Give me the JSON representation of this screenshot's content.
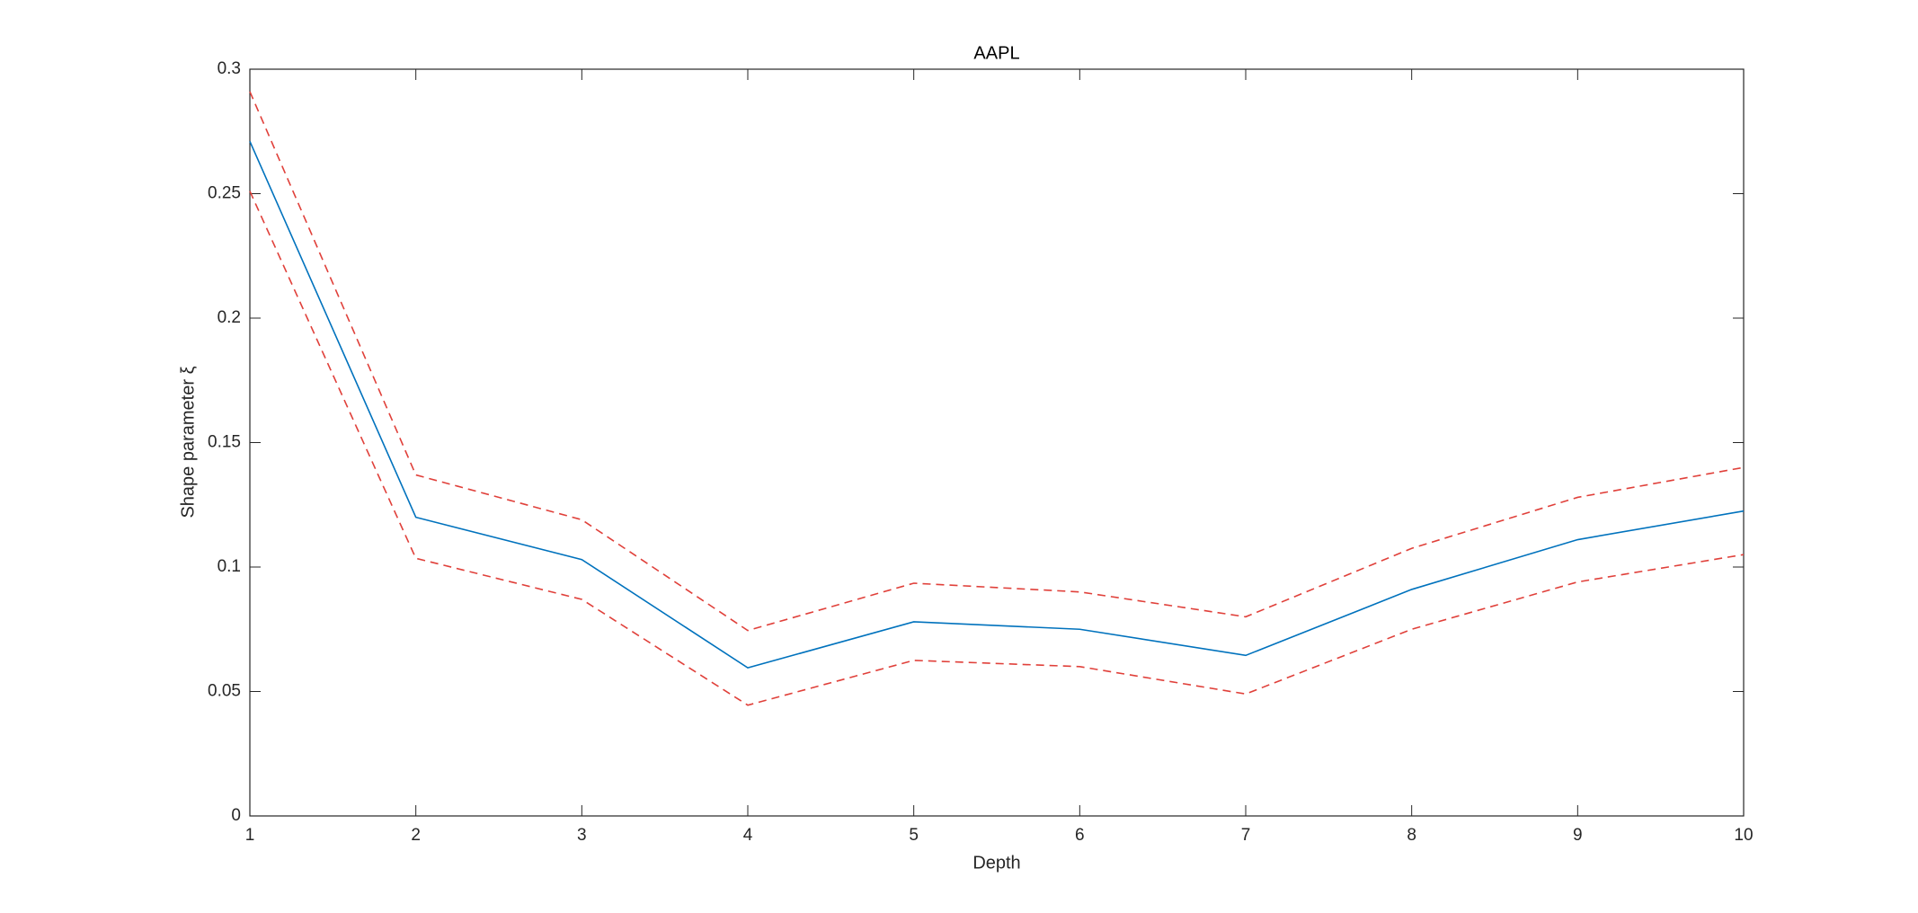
{
  "chart_data": {
    "type": "line",
    "title": "AAPL",
    "x_label": "Depth",
    "y_label": "Shape parameter ξ",
    "x": [
      1,
      2,
      3,
      4,
      5,
      6,
      7,
      8,
      9,
      10
    ],
    "series": [
      {
        "color": "#0072bd",
        "linestyle": "solid",
        "values": [
          0.271,
          0.12,
          0.103,
          0.0595,
          0.078,
          0.075,
          0.0645,
          0.091,
          0.111,
          0.1225
        ]
      },
      {
        "color": "#e0403a",
        "linestyle": "dashed",
        "values": [
          0.291,
          0.137,
          0.119,
          0.0745,
          0.0935,
          0.09,
          0.08,
          0.1075,
          0.128,
          0.14
        ]
      },
      {
        "color": "#e0403a",
        "linestyle": "dashed",
        "values": [
          0.251,
          0.1035,
          0.087,
          0.0445,
          0.0625,
          0.06,
          0.049,
          0.075,
          0.094,
          0.105
        ]
      }
    ],
    "xlim": [
      1,
      10
    ],
    "xticks": [
      1,
      2,
      3,
      4,
      5,
      6,
      7,
      8,
      9,
      10
    ],
    "ylim": [
      0,
      0.3
    ],
    "yticks": [
      0,
      0.05,
      0.1,
      0.15,
      0.2,
      0.25,
      0.3
    ],
    "grid": false
  }
}
